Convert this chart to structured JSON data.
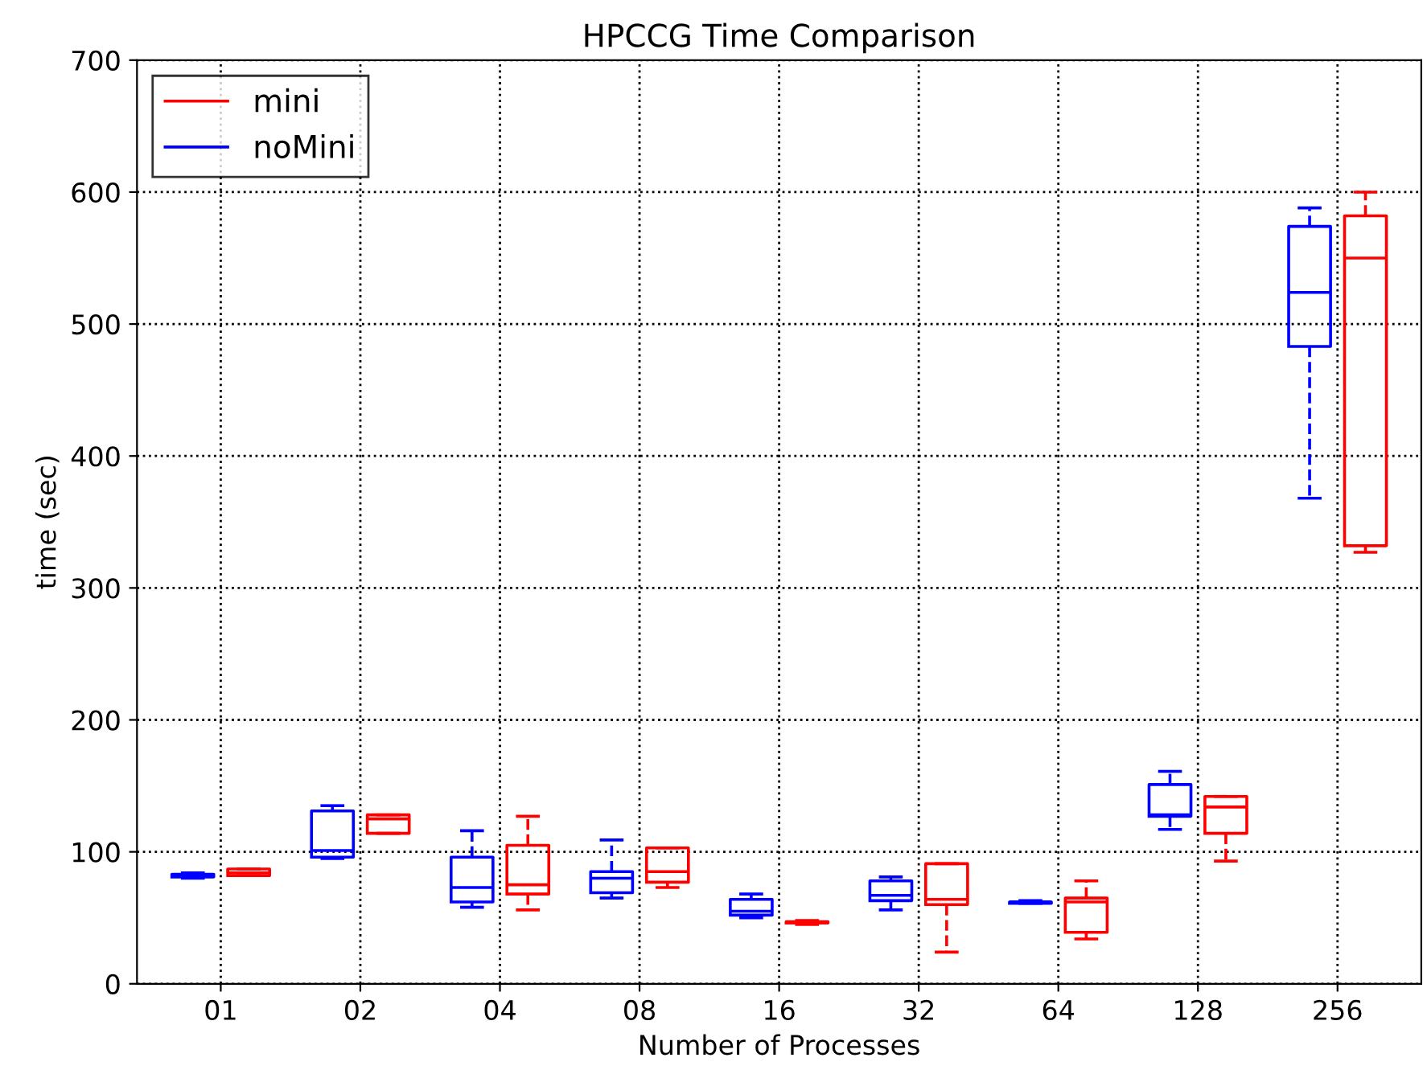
{
  "chart_data": {
    "type": "box",
    "title": "HPCCG Time Comparison",
    "xlabel": "Number of Processes",
    "ylabel": "time (sec)",
    "categories": [
      "01",
      "02",
      "04",
      "08",
      "16",
      "32",
      "64",
      "128",
      "256"
    ],
    "ylim": [
      0,
      700
    ],
    "yticks": [
      0,
      100,
      200,
      300,
      400,
      500,
      600,
      700
    ],
    "grid": true,
    "legend": "top left",
    "series": [
      {
        "name": "mini",
        "color": "#ff0000",
        "boxes": [
          {
            "low": 82,
            "q1": 82,
            "median": 84,
            "q3": 87,
            "high": 87
          },
          {
            "low": 114,
            "q1": 114,
            "median": 125,
            "q3": 128,
            "high": 128
          },
          {
            "low": 56,
            "q1": 68,
            "median": 75,
            "q3": 105,
            "high": 127
          },
          {
            "low": 73,
            "q1": 77,
            "median": 85,
            "q3": 103,
            "high": 103
          },
          {
            "low": 45,
            "q1": 46,
            "median": 46,
            "q3": 47,
            "high": 48
          },
          {
            "low": 24,
            "q1": 60,
            "median": 64,
            "q3": 91,
            "high": 91
          },
          {
            "low": 34,
            "q1": 39,
            "median": 62,
            "q3": 65,
            "high": 78
          },
          {
            "low": 93,
            "q1": 114,
            "median": 134,
            "q3": 142,
            "high": 142
          },
          {
            "low": 327,
            "q1": 332,
            "median": 550,
            "q3": 582,
            "high": 600
          }
        ]
      },
      {
        "name": "noMini",
        "color": "#0000ff",
        "boxes": [
          {
            "low": 80,
            "q1": 81,
            "median": 82,
            "q3": 83,
            "high": 84
          },
          {
            "low": 95,
            "q1": 96,
            "median": 101,
            "q3": 131,
            "high": 135
          },
          {
            "low": 58,
            "q1": 62,
            "median": 73,
            "q3": 96,
            "high": 116
          },
          {
            "low": 65,
            "q1": 69,
            "median": 80,
            "q3": 85,
            "high": 109
          },
          {
            "low": 50,
            "q1": 52,
            "median": 55,
            "q3": 64,
            "high": 68
          },
          {
            "low": 56,
            "q1": 63,
            "median": 67,
            "q3": 78,
            "high": 81
          },
          {
            "low": 61,
            "q1": 61,
            "median": 62,
            "q3": 62,
            "high": 63
          },
          {
            "low": 117,
            "q1": 127,
            "median": 128,
            "q3": 151,
            "high": 161
          },
          {
            "low": 368,
            "q1": 483,
            "median": 524,
            "q3": 574,
            "high": 588
          }
        ]
      }
    ]
  }
}
